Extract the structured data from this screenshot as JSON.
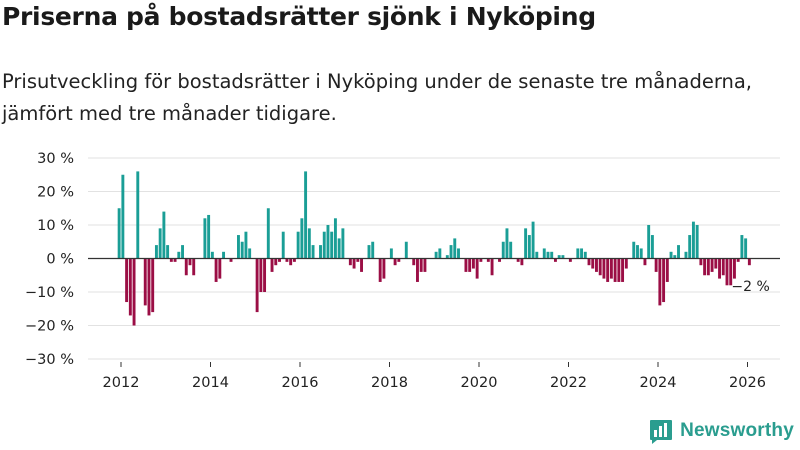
{
  "title": "Priserna på bostadsrätter sjönk i Nyköping",
  "subtitle": "Prisutveckling för bostadsrätter i Nyköping under de senaste tre månaderna, jämfört med tre månader tidigare.",
  "brand": {
    "name": "Newsworthy",
    "icon": "bar-chart-logo-icon"
  },
  "colors": {
    "positive": "#1a9e96",
    "negative": "#9b0e45",
    "grid": "#e2e2e2",
    "axis": "#333333",
    "brand": "#2a9d8f"
  },
  "chart_data": {
    "type": "bar",
    "title": "Priserna på bostadsrätter sjönk i Nyköping",
    "xlabel": "",
    "ylabel": "",
    "ylim": [
      -30,
      30
    ],
    "yticks": [
      30,
      20,
      10,
      0,
      -10,
      -20,
      -30
    ],
    "ytick_labels": [
      "30 %",
      "20 %",
      "10 %",
      "0 %",
      "−10 %",
      "−20 %",
      "−30 %"
    ],
    "xticks": [
      2012,
      2014,
      2016,
      2018,
      2020,
      2022,
      2024,
      2026
    ],
    "xtick_labels": [
      "2012",
      "2014",
      "2016",
      "2018",
      "2020",
      "2022",
      "2024",
      "2026"
    ],
    "start_year": 2012,
    "series": [
      {
        "name": "Prisutveckling",
        "values": [
          15,
          25,
          -13,
          -17,
          -20,
          26,
          0,
          -14,
          -17,
          -16,
          4,
          9,
          14,
          4,
          -1,
          -1,
          2,
          4,
          -5,
          -2,
          -5,
          0,
          0,
          12,
          13,
          2,
          -7,
          -6,
          2,
          0,
          -1,
          0,
          7,
          5,
          8,
          3,
          0,
          -16,
          -10,
          -10,
          15,
          -4,
          -2,
          -1,
          8,
          -1,
          -2,
          -1,
          8,
          12,
          26,
          9,
          4,
          0,
          4,
          8,
          10,
          8,
          12,
          6,
          9,
          0,
          -2,
          -3,
          -1,
          -4,
          0,
          4,
          5,
          0,
          -7,
          -6,
          0,
          3,
          -2,
          -1,
          0,
          5,
          0,
          -2,
          -7,
          -4,
          -4,
          0,
          0,
          2,
          3,
          0,
          1,
          4,
          6,
          3,
          0,
          -4,
          -4,
          -3,
          -6,
          -1,
          0,
          -1,
          -5,
          0,
          -1,
          5,
          9,
          5,
          0,
          -1,
          -2,
          9,
          7,
          11,
          2,
          0,
          3,
          2,
          2,
          -1,
          1,
          1,
          0,
          -1,
          0,
          3,
          3,
          2,
          -2,
          -3,
          -4,
          -5,
          -6,
          -7,
          -6,
          -7,
          -7,
          -7,
          -3,
          0,
          5,
          4,
          3,
          -2,
          10,
          7,
          -4,
          -14,
          -13,
          -7,
          2,
          1,
          4,
          0,
          2,
          7,
          11,
          10,
          -2,
          -5,
          -5,
          -4,
          -3,
          -6,
          -5,
          -8,
          -8,
          -6,
          -1,
          7,
          6,
          -2
        ],
        "last_label": "−2 %"
      }
    ]
  }
}
